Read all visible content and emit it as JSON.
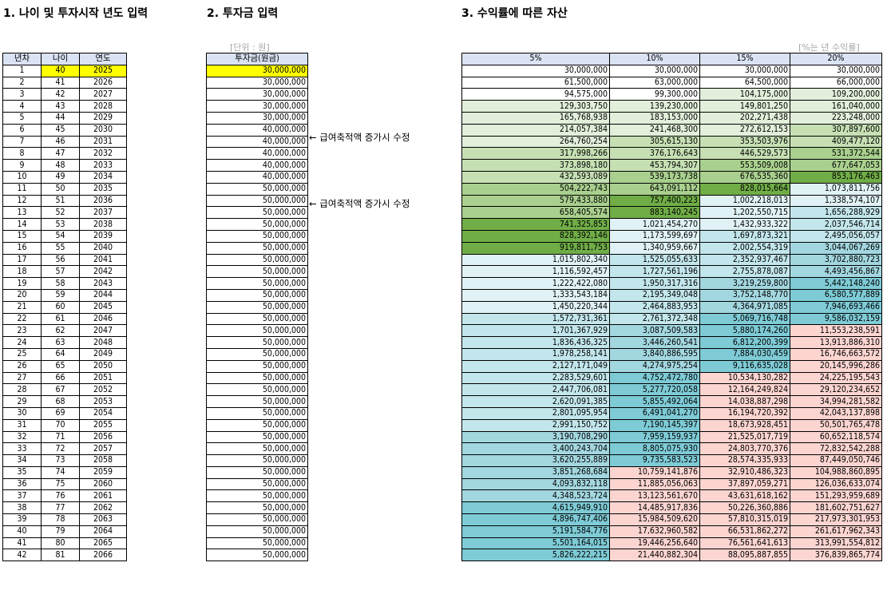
{
  "titles": {
    "t1": "1. 나이 및 투자시작 년도 입력",
    "t2": "2. 투자금 입력",
    "t3": "3. 수익률에 따른 자산"
  },
  "units": {
    "investment": "[단위 : 원]",
    "returns": "[%는 년 수익률]"
  },
  "table1": {
    "headers": [
      "년차",
      "나이",
      "연도"
    ]
  },
  "table2": {
    "header": "투자금(원금)"
  },
  "table3": {
    "headers": [
      "5%",
      "10%",
      "15%",
      "20%"
    ]
  },
  "notes": [
    "← 급여축적액 증가시 수정",
    "← 급여축적액 증가시 수정"
  ],
  "colors": {
    "header_bg": "#dae3f3",
    "input_yellow": "#ffff00",
    "green_1": "#e2efda",
    "green_2": "#c6e0b4",
    "green_3": "#a9d08e",
    "green_4": "#70ad47",
    "teal_1": "#e0f2f5",
    "teal_2": "#c2e6ec",
    "teal_3": "#a3d7e0",
    "teal_4": "#7ecbd6",
    "pink": "#fcd5d1"
  },
  "rows": [
    [
      "1",
      "40",
      "2025",
      "30,000,000",
      "30,000,000",
      "30,000,000",
      "30,000,000",
      "30,000,000"
    ],
    [
      "2",
      "41",
      "2026",
      "30,000,000",
      "61,500,000",
      "63,000,000",
      "64,500,000",
      "66,000,000"
    ],
    [
      "3",
      "42",
      "2027",
      "30,000,000",
      "94,575,000",
      "99,300,000",
      "104,175,000",
      "109,200,000"
    ],
    [
      "4",
      "43",
      "2028",
      "30,000,000",
      "129,303,750",
      "139,230,000",
      "149,801,250",
      "161,040,000"
    ],
    [
      "5",
      "44",
      "2029",
      "30,000,000",
      "165,768,938",
      "183,153,000",
      "202,271,438",
      "223,248,000"
    ],
    [
      "6",
      "45",
      "2030",
      "40,000,000",
      "214,057,384",
      "241,468,300",
      "272,612,153",
      "307,897,600"
    ],
    [
      "7",
      "46",
      "2031",
      "40,000,000",
      "264,760,254",
      "305,615,130",
      "353,503,976",
      "409,477,120"
    ],
    [
      "8",
      "47",
      "2032",
      "40,000,000",
      "317,998,266",
      "376,176,643",
      "446,529,573",
      "531,372,544"
    ],
    [
      "9",
      "48",
      "2033",
      "40,000,000",
      "373,898,180",
      "453,794,307",
      "553,509,008",
      "677,647,053"
    ],
    [
      "10",
      "49",
      "2034",
      "40,000,000",
      "432,593,089",
      "539,173,738",
      "676,535,360",
      "853,176,463"
    ],
    [
      "11",
      "50",
      "2035",
      "50,000,000",
      "504,222,743",
      "643,091,112",
      "828,015,664",
      "1,073,811,756"
    ],
    [
      "12",
      "51",
      "2036",
      "50,000,000",
      "579,433,880",
      "757,400,223",
      "1,002,218,013",
      "1,338,574,107"
    ],
    [
      "13",
      "52",
      "2037",
      "50,000,000",
      "658,405,574",
      "883,140,245",
      "1,202,550,715",
      "1,656,288,929"
    ],
    [
      "14",
      "53",
      "2038",
      "50,000,000",
      "741,325,853",
      "1,021,454,270",
      "1,432,933,322",
      "2,037,546,714"
    ],
    [
      "15",
      "54",
      "2039",
      "50,000,000",
      "828,392,146",
      "1,173,599,697",
      "1,697,873,321",
      "2,495,056,057"
    ],
    [
      "16",
      "55",
      "2040",
      "50,000,000",
      "919,811,753",
      "1,340,959,667",
      "2,002,554,319",
      "3,044,067,269"
    ],
    [
      "17",
      "56",
      "2041",
      "50,000,000",
      "1,015,802,340",
      "1,525,055,633",
      "2,352,937,467",
      "3,702,880,723"
    ],
    [
      "18",
      "57",
      "2042",
      "50,000,000",
      "1,116,592,457",
      "1,727,561,196",
      "2,755,878,087",
      "4,493,456,867"
    ],
    [
      "19",
      "58",
      "2043",
      "50,000,000",
      "1,222,422,080",
      "1,950,317,316",
      "3,219,259,800",
      "5,442,148,240"
    ],
    [
      "20",
      "59",
      "2044",
      "50,000,000",
      "1,333,543,184",
      "2,195,349,048",
      "3,752,148,770",
      "6,580,577,889"
    ],
    [
      "21",
      "60",
      "2045",
      "50,000,000",
      "1,450,220,344",
      "2,464,883,953",
      "4,364,971,085",
      "7,946,693,466"
    ],
    [
      "22",
      "61",
      "2046",
      "50,000,000",
      "1,572,731,361",
      "2,761,372,348",
      "5,069,716,748",
      "9,586,032,159"
    ],
    [
      "23",
      "62",
      "2047",
      "50,000,000",
      "1,701,367,929",
      "3,087,509,583",
      "5,880,174,260",
      "11,553,238,591"
    ],
    [
      "24",
      "63",
      "2048",
      "50,000,000",
      "1,836,436,325",
      "3,446,260,541",
      "6,812,200,399",
      "13,913,886,310"
    ],
    [
      "25",
      "64",
      "2049",
      "50,000,000",
      "1,978,258,141",
      "3,840,886,595",
      "7,884,030,459",
      "16,746,663,572"
    ],
    [
      "26",
      "65",
      "2050",
      "50,000,000",
      "2,127,171,049",
      "4,274,975,254",
      "9,116,635,028",
      "20,145,996,286"
    ],
    [
      "27",
      "66",
      "2051",
      "50,000,000",
      "2,283,529,601",
      "4,752,472,780",
      "10,534,130,282",
      "24,225,195,543"
    ],
    [
      "28",
      "67",
      "2052",
      "50,000,000",
      "2,447,706,081",
      "5,277,720,058",
      "12,164,249,824",
      "29,120,234,652"
    ],
    [
      "29",
      "68",
      "2053",
      "50,000,000",
      "2,620,091,385",
      "5,855,492,064",
      "14,038,887,298",
      "34,994,281,582"
    ],
    [
      "30",
      "69",
      "2054",
      "50,000,000",
      "2,801,095,954",
      "6,491,041,270",
      "16,194,720,392",
      "42,043,137,898"
    ],
    [
      "31",
      "70",
      "2055",
      "50,000,000",
      "2,991,150,752",
      "7,190,145,397",
      "18,673,928,451",
      "50,501,765,478"
    ],
    [
      "32",
      "71",
      "2056",
      "50,000,000",
      "3,190,708,290",
      "7,959,159,937",
      "21,525,017,719",
      "60,652,118,574"
    ],
    [
      "33",
      "72",
      "2057",
      "50,000,000",
      "3,400,243,704",
      "8,805,075,930",
      "24,803,770,376",
      "72,832,542,288"
    ],
    [
      "34",
      "73",
      "2058",
      "50,000,000",
      "3,620,255,889",
      "9,735,583,523",
      "28,574,335,933",
      "87,449,050,746"
    ],
    [
      "35",
      "74",
      "2059",
      "50,000,000",
      "3,851,268,684",
      "10,759,141,876",
      "32,910,486,323",
      "104,988,860,895"
    ],
    [
      "36",
      "75",
      "2060",
      "50,000,000",
      "4,093,832,118",
      "11,885,056,063",
      "37,897,059,271",
      "126,036,633,074"
    ],
    [
      "37",
      "76",
      "2061",
      "50,000,000",
      "4,348,523,724",
      "13,123,561,670",
      "43,631,618,162",
      "151,293,959,689"
    ],
    [
      "38",
      "77",
      "2062",
      "50,000,000",
      "4,615,949,910",
      "14,485,917,836",
      "50,226,360,886",
      "181,602,751,627"
    ],
    [
      "39",
      "78",
      "2063",
      "50,000,000",
      "4,896,747,406",
      "15,984,509,620",
      "57,810,315,019",
      "217,973,301,953"
    ],
    [
      "40",
      "79",
      "2064",
      "50,000,000",
      "5,191,584,776",
      "17,632,960,582",
      "66,531,862,272",
      "261,617,962,343"
    ],
    [
      "41",
      "80",
      "2065",
      "50,000,000",
      "5,501,164,015",
      "19,446,256,640",
      "76,561,641,613",
      "313,991,554,812"
    ],
    [
      "42",
      "81",
      "2066",
      "50,000,000",
      "5,826,222,215",
      "21,440,882,304",
      "88,095,887,855",
      "376,839,865,774"
    ]
  ]
}
